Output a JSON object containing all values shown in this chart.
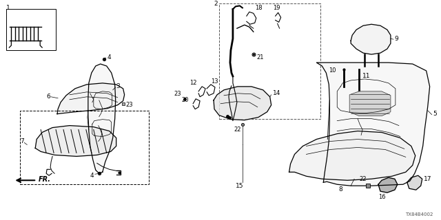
{
  "bg_color": "#ffffff",
  "diagram_code": "TX84B4002"
}
